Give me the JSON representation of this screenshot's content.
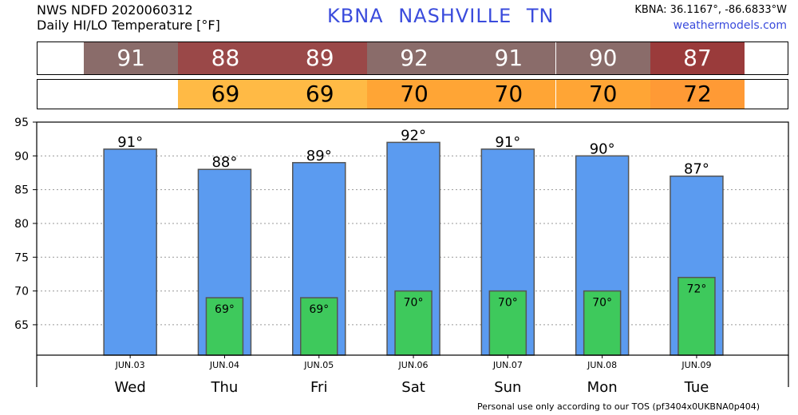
{
  "header": {
    "line1": "NWS NDFD 2020060312",
    "line2": "Daily HI/LO Temperature [°F]",
    "station": "KBNA  NASHVILLE     TN",
    "coords": "KBNA: 36.1167°, -86.6833°W",
    "site": "weathermodels.com"
  },
  "footer": "Personal use only according to our TOS (pf3404x0UKBNA0p404)",
  "colors": {
    "hi_bar": "#5b9bf0",
    "lo_bar": "#3ec95c",
    "hi_strip": [
      "#8a6c6a",
      "#9a4848",
      "#9a4848",
      "#8a6c6a",
      "#8a6c6a",
      "#8a6c6a",
      "#9a3b3b"
    ],
    "lo_strip": [
      "#ffffff",
      "#ffba45",
      "#ffba45",
      "#ffa535",
      "#ffa535",
      "#ffa535",
      "#ff9a35"
    ]
  },
  "chart_data": {
    "type": "bar",
    "categories": [
      "JUN.03",
      "JUN.04",
      "JUN.05",
      "JUN.06",
      "JUN.07",
      "JUN.08",
      "JUN.09"
    ],
    "days": [
      "Wed",
      "Thu",
      "Fri",
      "Sat",
      "Sun",
      "Mon",
      "Tue"
    ],
    "series": [
      {
        "values": [
          91,
          88,
          89,
          92,
          91,
          90,
          87
        ]
      },
      {
        "values": [
          null,
          69,
          69,
          70,
          70,
          70,
          72
        ]
      }
    ],
    "hi_labels": [
      "91°",
      "88°",
      "89°",
      "92°",
      "91°",
      "90°",
      "87°"
    ],
    "lo_labels": [
      "",
      "69°",
      "69°",
      "70°",
      "70°",
      "70°",
      "72°"
    ],
    "ylim": [
      60.5,
      95
    ],
    "yticks": [
      65,
      70,
      75,
      80,
      85,
      90,
      95
    ],
    "grid": true
  }
}
